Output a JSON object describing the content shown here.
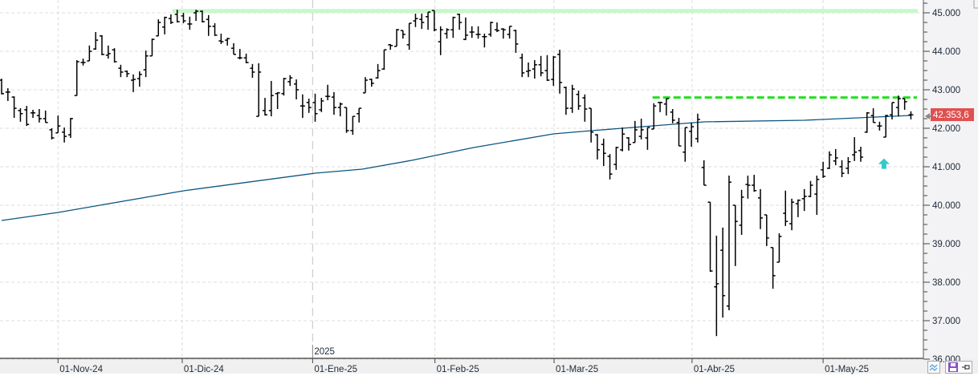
{
  "chart_data": {
    "type": "ohlc",
    "title": "",
    "xlabel": "",
    "ylabel": "",
    "ylim": [
      36000,
      45350
    ],
    "y_ticks": [
      {
        "value": 45000,
        "label": "45.000"
      },
      {
        "value": 44000,
        "label": "44.000"
      },
      {
        "value": 43000,
        "label": "43.000"
      },
      {
        "value": 42000,
        "label": "42.000"
      },
      {
        "value": 41000,
        "label": "41.000"
      },
      {
        "value": 40000,
        "label": "40.000"
      },
      {
        "value": 39000,
        "label": "39.000"
      },
      {
        "value": 38000,
        "label": "38.000"
      },
      {
        "value": 37000,
        "label": "37.000"
      },
      {
        "value": 36000,
        "label": "36.000"
      }
    ],
    "x_ticks": [
      {
        "label": "01-Nov-24",
        "bar": 9
      },
      {
        "label": "01-Dic-24",
        "bar": 28.8
      },
      {
        "label": "01-Ene-25",
        "bar": 49.6,
        "year_label": "2025"
      },
      {
        "label": "01-Feb-25",
        "bar": 69.1
      },
      {
        "label": "01-Mar-25",
        "bar": 88.1
      },
      {
        "label": "01-Abr-25",
        "bar": 110.1
      },
      {
        "label": "01-May-25",
        "bar": 131
      }
    ],
    "grid": true,
    "bar_format": [
      "open",
      "high",
      "low",
      "close"
    ],
    "bars": [
      [
        43250,
        43290,
        42880,
        42900
      ],
      [
        42940,
        43040,
        42710,
        42940
      ],
      [
        42810,
        42830,
        42270,
        42520
      ],
      [
        42460,
        42520,
        42170,
        42380
      ],
      [
        42480,
        42580,
        42060,
        42100
      ],
      [
        42400,
        42480,
        42270,
        42400
      ],
      [
        42330,
        42500,
        42150,
        42250
      ],
      [
        42250,
        42460,
        42150,
        42150
      ],
      [
        41960,
        42000,
        41710,
        41750
      ],
      [
        41880,
        42330,
        41880,
        42060
      ],
      [
        41900,
        42020,
        41630,
        41790
      ],
      [
        41830,
        42270,
        41750,
        42250
      ],
      [
        42850,
        43770,
        42850,
        43730
      ],
      [
        43710,
        43810,
        43630,
        43710
      ],
      [
        43750,
        44150,
        43750,
        44000
      ],
      [
        44060,
        44500,
        44040,
        44290
      ],
      [
        44400,
        44420,
        43900,
        43920
      ],
      [
        43900,
        44150,
        43810,
        43940
      ],
      [
        44040,
        44080,
        43710,
        43730
      ],
      [
        43560,
        43650,
        43330,
        43460
      ],
      [
        43480,
        43500,
        43330,
        43420
      ],
      [
        43250,
        43400,
        42940,
        43270
      ],
      [
        43290,
        43480,
        43080,
        43400
      ],
      [
        43520,
        44020,
        43330,
        43880
      ],
      [
        43880,
        44330,
        43880,
        44310
      ],
      [
        44400,
        44830,
        44400,
        44750
      ],
      [
        44630,
        44900,
        44440,
        44880
      ],
      [
        44850,
        44960,
        44710,
        44750
      ],
      [
        44960,
        45080,
        44750,
        44770
      ],
      [
        44920,
        45000,
        44730,
        44790
      ],
      [
        44710,
        44900,
        44560,
        44710
      ],
      [
        45000,
        45080,
        44790,
        45040
      ],
      [
        45040,
        45060,
        44750,
        44770
      ],
      [
        44830,
        44940,
        44400,
        44650
      ],
      [
        44650,
        44730,
        44400,
        44420
      ],
      [
        44270,
        44460,
        44190,
        44250
      ],
      [
        44290,
        44350,
        44150,
        44330
      ],
      [
        44080,
        44210,
        43920,
        43920
      ],
      [
        43830,
        44060,
        43790,
        43830
      ],
      [
        43830,
        43940,
        43690,
        43710
      ],
      [
        43560,
        43670,
        43310,
        43460
      ],
      [
        42310,
        43690,
        42310,
        43460
      ],
      [
        42460,
        42790,
        42330,
        42350
      ],
      [
        42460,
        43230,
        42310,
        42850
      ],
      [
        42900,
        42940,
        42500,
        42920
      ],
      [
        42900,
        43310,
        42850,
        43290
      ],
      [
        43210,
        43380,
        43100,
        43310
      ],
      [
        43150,
        43270,
        42750,
        43000
      ],
      [
        42580,
        42880,
        42270,
        42580
      ],
      [
        42670,
        42770,
        42400,
        42540
      ],
      [
        42670,
        42900,
        42170,
        42380
      ],
      [
        42480,
        42790,
        42420,
        42710
      ],
      [
        42830,
        43130,
        42730,
        42830
      ],
      [
        42810,
        42940,
        42350,
        42540
      ],
      [
        42540,
        42670,
        42310,
        42630
      ],
      [
        42540,
        42540,
        41880,
        41940
      ],
      [
        41940,
        42310,
        41830,
        42310
      ],
      [
        42380,
        42520,
        42150,
        42520
      ],
      [
        42920,
        43330,
        42920,
        43250
      ],
      [
        43270,
        43290,
        43080,
        43170
      ],
      [
        43310,
        43670,
        43290,
        43500
      ],
      [
        43540,
        44040,
        43520,
        44040
      ],
      [
        44170,
        44190,
        44040,
        44150
      ],
      [
        44130,
        44580,
        44130,
        44560
      ],
      [
        44540,
        44540,
        44330,
        44440
      ],
      [
        44170,
        44730,
        44040,
        44730
      ],
      [
        44790,
        44980,
        44630,
        44850
      ],
      [
        44830,
        44980,
        44580,
        44750
      ],
      [
        44900,
        45020,
        44560,
        45020
      ],
      [
        45060,
        45060,
        44520,
        44560
      ],
      [
        44250,
        44650,
        43900,
        44560
      ],
      [
        44460,
        44600,
        44330,
        44560
      ],
      [
        44560,
        44900,
        44350,
        44880
      ],
      [
        44960,
        44980,
        44560,
        44750
      ],
      [
        44310,
        44880,
        44290,
        44420
      ],
      [
        44500,
        44650,
        44350,
        44500
      ],
      [
        44440,
        44650,
        44330,
        44440
      ],
      [
        44380,
        44460,
        44100,
        44380
      ],
      [
        44440,
        44770,
        44380,
        44750
      ],
      [
        44560,
        44750,
        44500,
        44540
      ],
      [
        44580,
        44600,
        44330,
        44560
      ],
      [
        44440,
        44650,
        44330,
        44650
      ],
      [
        44540,
        44560,
        43960,
        44190
      ],
      [
        43830,
        43940,
        43330,
        43440
      ],
      [
        43480,
        43710,
        43330,
        43500
      ],
      [
        43540,
        43770,
        43290,
        43650
      ],
      [
        43650,
        43880,
        43350,
        43440
      ],
      [
        43500,
        43900,
        43230,
        43250
      ],
      [
        43270,
        43880,
        43100,
        43850
      ],
      [
        43920,
        44040,
        42900,
        43190
      ],
      [
        43060,
        43080,
        42350,
        42520
      ],
      [
        42520,
        43130,
        42400,
        43020
      ],
      [
        42880,
        42980,
        42480,
        42580
      ],
      [
        42790,
        42880,
        42170,
        42500
      ],
      [
        42520,
        42520,
        41630,
        41900
      ],
      [
        41830,
        41850,
        41190,
        41440
      ],
      [
        41580,
        41730,
        41020,
        41350
      ],
      [
        41270,
        41330,
        40670,
        40810
      ],
      [
        41060,
        41520,
        40920,
        41500
      ],
      [
        41440,
        42020,
        41400,
        41850
      ],
      [
        41750,
        41770,
        41420,
        41580
      ],
      [
        41630,
        42190,
        41630,
        41960
      ],
      [
        41790,
        42250,
        41710,
        41960
      ],
      [
        41750,
        42020,
        41440,
        42020
      ],
      [
        41980,
        42650,
        41980,
        42580
      ],
      [
        42670,
        42690,
        42420,
        42670
      ],
      [
        42630,
        42770,
        42330,
        42770
      ],
      [
        42420,
        42500,
        42130,
        42210
      ],
      [
        42150,
        42270,
        41540,
        41540
      ],
      [
        41380,
        42020,
        41130,
        42020
      ],
      [
        41920,
        42150,
        41520,
        42040
      ],
      [
        41730,
        42380,
        41630,
        42230
      ],
      [
        40980,
        41170,
        40520,
        40520
      ],
      [
        40080,
        40080,
        38270,
        38290
      ],
      [
        37880,
        39210,
        36600,
        37960
      ],
      [
        38830,
        39420,
        37080,
        37650
      ],
      [
        37380,
        40770,
        37270,
        40600
      ],
      [
        40000,
        40000,
        38420,
        39580
      ],
      [
        39480,
        40400,
        39230,
        40210
      ],
      [
        40540,
        40770,
        40170,
        40520
      ],
      [
        40520,
        40790,
        40350,
        40380
      ],
      [
        40190,
        40420,
        39380,
        39670
      ],
      [
        39750,
        39750,
        38940,
        39150
      ],
      [
        38900,
        38900,
        37830,
        38170
      ],
      [
        38520,
        39270,
        38520,
        39190
      ],
      [
        39790,
        40380,
        39460,
        39580
      ],
      [
        39520,
        40170,
        39350,
        40080
      ],
      [
        40040,
        40150,
        39690,
        40130
      ],
      [
        40170,
        40420,
        39850,
        40230
      ],
      [
        40230,
        40630,
        40210,
        40520
      ],
      [
        40290,
        40770,
        39750,
        40670
      ],
      [
        40920,
        41130,
        40710,
        40750
      ],
      [
        40960,
        41400,
        40940,
        41310
      ],
      [
        41150,
        41460,
        41040,
        41230
      ],
      [
        41000,
        41170,
        40730,
        40830
      ],
      [
        40960,
        41250,
        40810,
        41130
      ],
      [
        41310,
        41770,
        41150,
        41380
      ],
      [
        41420,
        41520,
        41130,
        41250
      ],
      [
        41900,
        42420,
        41880,
        42400
      ],
      [
        42330,
        42520,
        42150,
        42150
      ],
      [
        42060,
        42170,
        41940,
        42060
      ],
      [
        41770,
        42350,
        41770,
        42330
      ],
      [
        42350,
        42670,
        42230,
        42670
      ],
      [
        42540,
        42850,
        42310,
        42770
      ],
      [
        42770,
        42770,
        42480,
        42690
      ],
      [
        42350,
        42440,
        42230,
        42350
      ]
    ],
    "moving_average": {
      "color": "#0b5580",
      "points": [
        [
          0,
          39604
        ],
        [
          9,
          39812
        ],
        [
          29,
          40375
        ],
        [
          50,
          40833
        ],
        [
          57.5,
          40937
        ],
        [
          65.4,
          41167
        ],
        [
          75.3,
          41500
        ],
        [
          88,
          41854
        ],
        [
          94,
          41937
        ],
        [
          112,
          42167
        ],
        [
          128,
          42208
        ],
        [
          145,
          42333
        ]
      ]
    },
    "resistance_zone": {
      "from": 45000,
      "to": 45100,
      "start_bar": 27.2,
      "color": "#c9f7c9"
    },
    "resistance_line": {
      "value": 42800,
      "start_bar": 103.8,
      "style": "dashed",
      "color": "#22e01e"
    },
    "signal_arrow": {
      "bar": 140.7,
      "value": 41050,
      "direction": "up",
      "color": "#33c9c9"
    },
    "last_price": {
      "value": 42353.6,
      "label": "42.353,6",
      "color": "#e05050"
    },
    "bar_color": "#000000"
  },
  "toolbar": {
    "indicator_icon": "wave-icon",
    "save_icon": "floppy-disk-icon",
    "pin_icon": "pin-icon"
  }
}
